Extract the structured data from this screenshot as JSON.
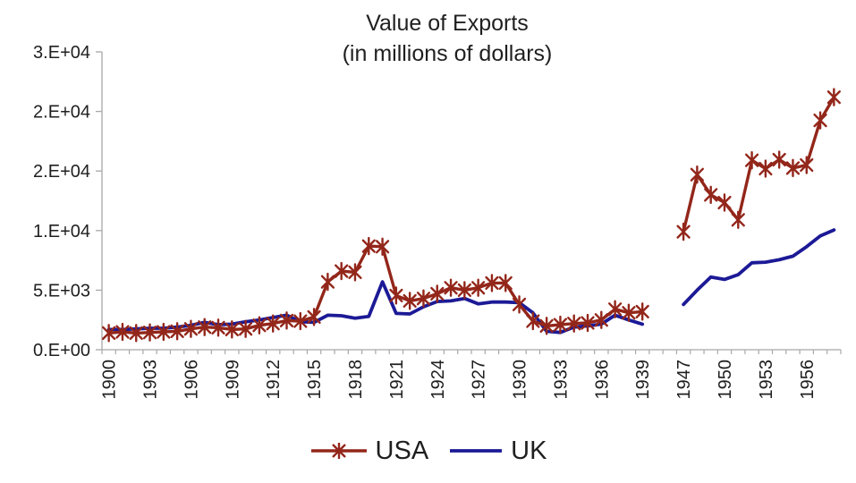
{
  "title": {
    "line1": "Value of Exports",
    "line2": "(in millions of dollars)"
  },
  "legend": {
    "usa_label": "USA",
    "uk_label": "UK"
  },
  "colors": {
    "usa": "#93261A",
    "uk": "#1C1A96",
    "axis": "#A8A8A8",
    "text": "#1F1F1F",
    "background": "#FFFFFF"
  },
  "chart_data": {
    "type": "line",
    "title": "Value of Exports (in millions of dollars)",
    "xlabel": "",
    "ylabel": "",
    "ylim": [
      0,
      25000
    ],
    "grid": false,
    "legend_position": "bottom",
    "x_label_every": 3,
    "y_ticks": [
      {
        "value": 0,
        "label": "0.E+00"
      },
      {
        "value": 5000,
        "label": "5.E+03"
      },
      {
        "value": 10000,
        "label": "1.E+04"
      },
      {
        "value": 15000,
        "label": "2.E+04"
      },
      {
        "value": 20000,
        "label": "2.E+04"
      },
      {
        "value": 25000,
        "label": "3.E+04"
      }
    ],
    "years": [
      "1900",
      "1901",
      "1902",
      "1903",
      "1904",
      "1905",
      "1906",
      "1907",
      "1908",
      "1909",
      "1910",
      "1911",
      "1912",
      "1913",
      "1914",
      "1915",
      "1916",
      "1917",
      "1918",
      "1919",
      "1920",
      "1921",
      "1922",
      "1923",
      "1924",
      "1925",
      "1926",
      "1927",
      "1928",
      "1929",
      "1930",
      "1931",
      "1932",
      "1933",
      "1934",
      "1935",
      "1936",
      "1937",
      "1938",
      "1939",
      "",
      "",
      "1947",
      "1948",
      "1949",
      "1950",
      "1951",
      "1952",
      "1953",
      "1954",
      "1955",
      "1956",
      "1957",
      "1958"
    ],
    "series": [
      {
        "name": "USA",
        "color_key": "usa",
        "marker": "asterisk",
        "values": [
          1400,
          1500,
          1400,
          1450,
          1500,
          1550,
          1750,
          1900,
          1850,
          1700,
          1750,
          2050,
          2200,
          2450,
          2400,
          2750,
          5700,
          6600,
          6500,
          8700,
          8650,
          4550,
          4100,
          4300,
          4700,
          5200,
          5000,
          5200,
          5600,
          5600,
          3800,
          2400,
          2000,
          2100,
          2200,
          2250,
          2500,
          3400,
          3100,
          3200,
          null,
          null,
          9900,
          14700,
          13000,
          12350,
          10900,
          15900,
          15200,
          15950,
          15250,
          15500,
          19250,
          21200
        ]
      },
      {
        "name": "UK",
        "color_key": "uk",
        "marker": "none",
        "values": [
          1700,
          1700,
          1750,
          1800,
          1800,
          1900,
          2050,
          2300,
          2100,
          2150,
          2350,
          2500,
          2700,
          2900,
          2350,
          2300,
          2900,
          2850,
          2650,
          2800,
          5700,
          3050,
          3000,
          3600,
          4050,
          4100,
          4300,
          3850,
          4000,
          4000,
          3950,
          3100,
          1550,
          1450,
          1900,
          2000,
          2150,
          2900,
          2500,
          2150,
          null,
          null,
          3800,
          5000,
          6100,
          5900,
          6300,
          7300,
          7350,
          7550,
          7850,
          8650,
          9550,
          10050
        ]
      }
    ]
  }
}
